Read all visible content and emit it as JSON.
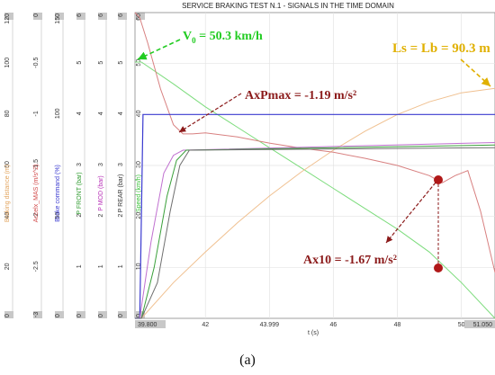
{
  "caption": "(a)",
  "chart_data": {
    "type": "line",
    "title": "SERVICE BRAKING TEST N.1 - SIGNALS IN THE TIME DOMAIN",
    "xlabel": "t (s)",
    "xlim": [
      39.8,
      51.05
    ],
    "x_ticks": [
      "39.800",
      "42",
      "43.999",
      "46",
      "48",
      "50",
      "51.050"
    ],
    "grid": true,
    "axes": [
      {
        "name": "Braking distance (m)",
        "color": "#e2a35c",
        "ticks": [
          "120",
          "100",
          "80",
          "60",
          "40",
          "20",
          "0"
        ]
      },
      {
        "name": "Accelx_MAS (m/s^2)",
        "color": "#d24a4a",
        "ticks": [
          "0",
          "-0.5",
          "-1",
          "-1.5",
          "-2",
          "-2.5",
          "-3"
        ]
      },
      {
        "name": "Brake command (%)",
        "color": "#3a3ad0",
        "ticks": [
          "150",
          "100",
          "50",
          "0"
        ]
      },
      {
        "name": "P FRONT (bar)",
        "color": "#2e9a2e",
        "ticks": [
          "6",
          "5",
          "4",
          "3",
          "2",
          "1",
          "0"
        ]
      },
      {
        "name": "P MOD (bar)",
        "color": "#b833b8",
        "ticks": [
          "6",
          "5",
          "4",
          "3",
          "2",
          "1",
          "0"
        ]
      },
      {
        "name": "P REAR (bar)",
        "color": "#333333",
        "ticks": [
          "6",
          "5",
          "4",
          "3",
          "2",
          "1",
          "0"
        ]
      },
      {
        "name": "Speed (km/h)",
        "color": "#3cc23c",
        "ticks": [
          "60",
          "50",
          "40",
          "30",
          "20",
          "10",
          "0"
        ]
      }
    ],
    "series": [
      {
        "name": "Speed (km/h)",
        "color": "#7ddc7d",
        "x": [
          39.8,
          40.0,
          41.0,
          42.0,
          43.0,
          44.0,
          45.0,
          46.0,
          47.0,
          48.0,
          49.0,
          50.0,
          51.05
        ],
        "y": [
          50.3,
          50.3,
          46.0,
          41.5,
          37.5,
          33.5,
          29.5,
          25.5,
          21.5,
          17.5,
          13.0,
          7.0,
          0.0
        ]
      },
      {
        "name": "Braking distance (m)",
        "color": "#f0c090",
        "x": [
          39.8,
          40.0,
          41.0,
          42.0,
          43.0,
          44.0,
          45.0,
          46.0,
          47.0,
          48.0,
          49.0,
          50.0,
          51.05
        ],
        "y": [
          0.0,
          0.0,
          14.0,
          26.0,
          37.5,
          48.0,
          57.5,
          66.0,
          73.5,
          80.0,
          85.0,
          88.5,
          90.3
        ]
      },
      {
        "name": "Accelx_MAS (m/s^2)",
        "color": "#d88080",
        "x": [
          39.8,
          39.95,
          40.2,
          40.6,
          41.0,
          41.3,
          41.6,
          42.0,
          43.0,
          44.0,
          45.0,
          46.0,
          47.0,
          48.0,
          49.0,
          49.4,
          49.8,
          50.2,
          50.6,
          51.05
        ],
        "y": [
          0.0,
          -0.05,
          -0.3,
          -0.75,
          -1.1,
          -1.19,
          -1.19,
          -1.18,
          -1.22,
          -1.28,
          -1.33,
          -1.37,
          -1.43,
          -1.5,
          -1.6,
          -1.67,
          -1.6,
          -1.55,
          -1.95,
          -2.55
        ]
      },
      {
        "name": "Brake command (%)",
        "color": "#3a3ad0",
        "x": [
          39.8,
          39.95,
          40.05,
          51.05
        ],
        "y": [
          0,
          0,
          100,
          100
        ]
      },
      {
        "name": "P MOD (bar)",
        "color": "#c070d0",
        "x": [
          39.8,
          39.95,
          40.3,
          40.7,
          41.0,
          41.3,
          51.05
        ],
        "y": [
          0.0,
          0.0,
          1.5,
          2.85,
          3.2,
          3.3,
          3.45
        ]
      },
      {
        "name": "P FRONT (bar)",
        "color": "#3aa03a",
        "x": [
          39.8,
          40.0,
          40.4,
          40.8,
          41.1,
          41.4,
          51.05
        ],
        "y": [
          0.0,
          0.0,
          1.0,
          2.4,
          3.1,
          3.3,
          3.4
        ]
      },
      {
        "name": "P REAR (bar)",
        "color": "#707070",
        "x": [
          39.8,
          40.0,
          40.5,
          40.9,
          41.2,
          41.5,
          51.05
        ],
        "y": [
          0.0,
          0.0,
          0.7,
          2.1,
          3.0,
          3.3,
          3.35
        ]
      }
    ],
    "annotations": [
      {
        "label": "V",
        "subscript": "0",
        "suffix": " = 50.3 km/h",
        "color": "#22cc22"
      },
      {
        "label": "AxPmax = -1.19 m/s²",
        "color": "#8b1a1a"
      },
      {
        "label": "Ax10 = -1.67 m/s²",
        "color": "#8b1a1a"
      },
      {
        "label": "Ls = Lb = 90.3 m",
        "color": "#e0b000"
      }
    ]
  }
}
